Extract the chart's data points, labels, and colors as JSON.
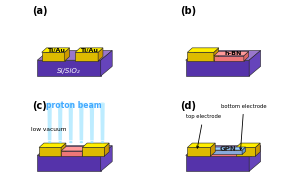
{
  "fig_width": 2.97,
  "fig_height": 1.89,
  "dpi": 100,
  "background": "#ffffff",
  "panel_labels": [
    "(a)",
    "(b)",
    "(c)",
    "(d)"
  ],
  "panel_label_fontsize": 7,
  "sub_top": "#9977cc",
  "sub_left": "#7755bb",
  "sub_front": "#5533aa",
  "sub_right": "#6644bb",
  "elec_top": "#ffee00",
  "elec_right": "#cc9900",
  "elec_front": "#ddbb00",
  "hbn_top": "#ff9999",
  "hbn_right": "#dd6666",
  "hbn_front": "#ee7777",
  "gpn_color": "#99ccff",
  "si_label": "Si/SiO₂",
  "ti_au_label": "Ti/Au",
  "hbn_label": "h-BN",
  "proton_beam_label": "proton beam",
  "low_vacuum_label": "low vacuum",
  "gpn_label": "GPN",
  "top_electrode_label": "top electrode",
  "bottom_electrode_label": "bottom electrode",
  "proton_color": "#88ddff",
  "edge_color": "#222222",
  "edge_lw": 0.4
}
